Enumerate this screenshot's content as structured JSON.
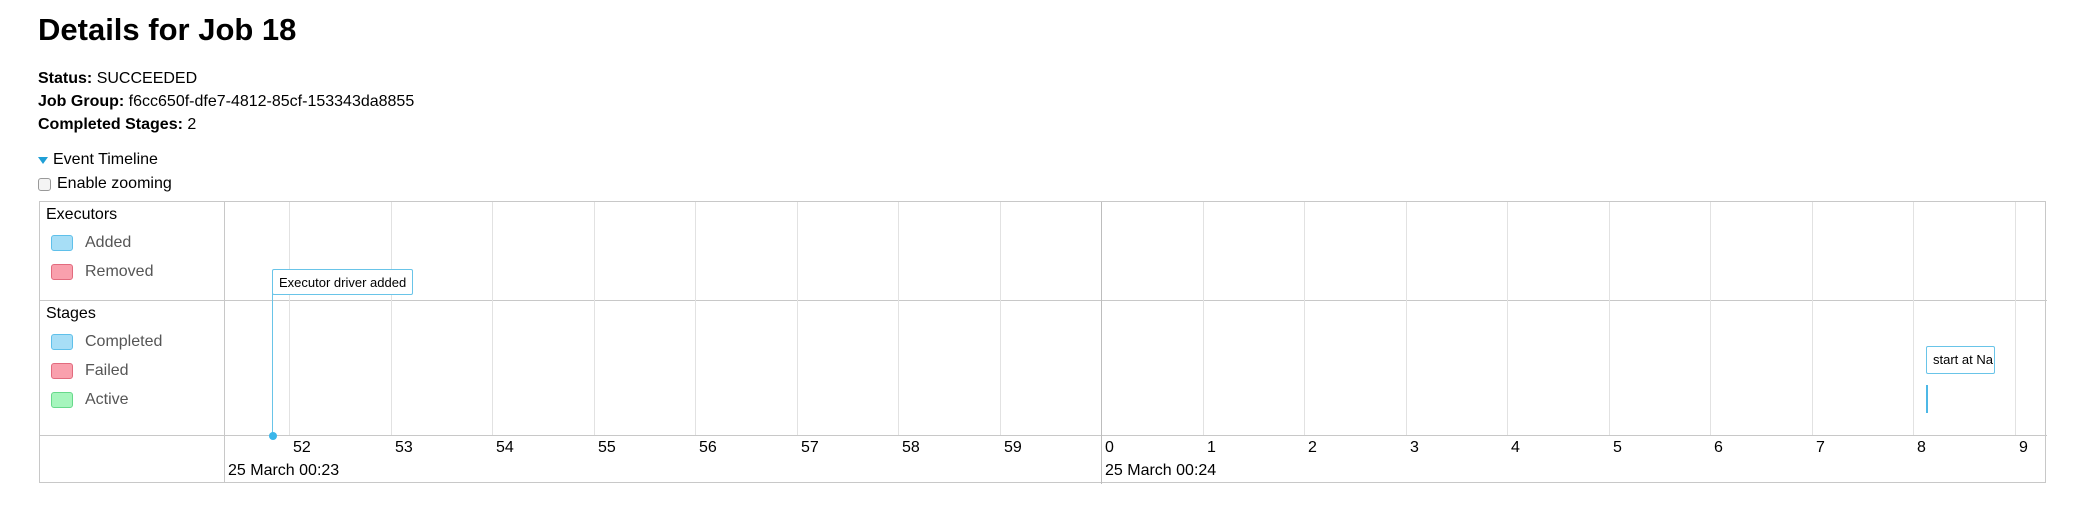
{
  "page": {
    "title": "Details for Job 18"
  },
  "job": {
    "status_label": "Status:",
    "status_value": "SUCCEEDED",
    "group_label": "Job Group:",
    "group_value": "f6cc650f-dfe7-4812-85cf-153343da8855",
    "stages_label": "Completed Stages:",
    "stages_value": "2"
  },
  "timeline": {
    "toggle_label": "Event Timeline",
    "zoom_label": "Enable zooming",
    "executors": {
      "title": "Executors",
      "legend": [
        {
          "label": "Added",
          "fill": "#a7def6",
          "border": "#5fc0ea"
        },
        {
          "label": "Removed",
          "fill": "#f9a0ad",
          "border": "#e26b7e"
        }
      ],
      "event": "Executor driver added"
    },
    "stages": {
      "title": "Stages",
      "legend": [
        {
          "label": "Completed",
          "fill": "#a7def6",
          "border": "#5fc0ea"
        },
        {
          "label": "Failed",
          "fill": "#f9a0ad",
          "border": "#e26b7e"
        },
        {
          "label": "Active",
          "fill": "#a6f5bd",
          "border": "#67d98b"
        }
      ],
      "event": "start at Na"
    },
    "ticks": [
      "52",
      "53",
      "54",
      "55",
      "56",
      "57",
      "58",
      "59",
      "0",
      "1",
      "2",
      "3",
      "4",
      "5",
      "6",
      "7",
      "8",
      "9"
    ],
    "dates": [
      "25 March 00:23",
      "25 March 00:24"
    ]
  }
}
